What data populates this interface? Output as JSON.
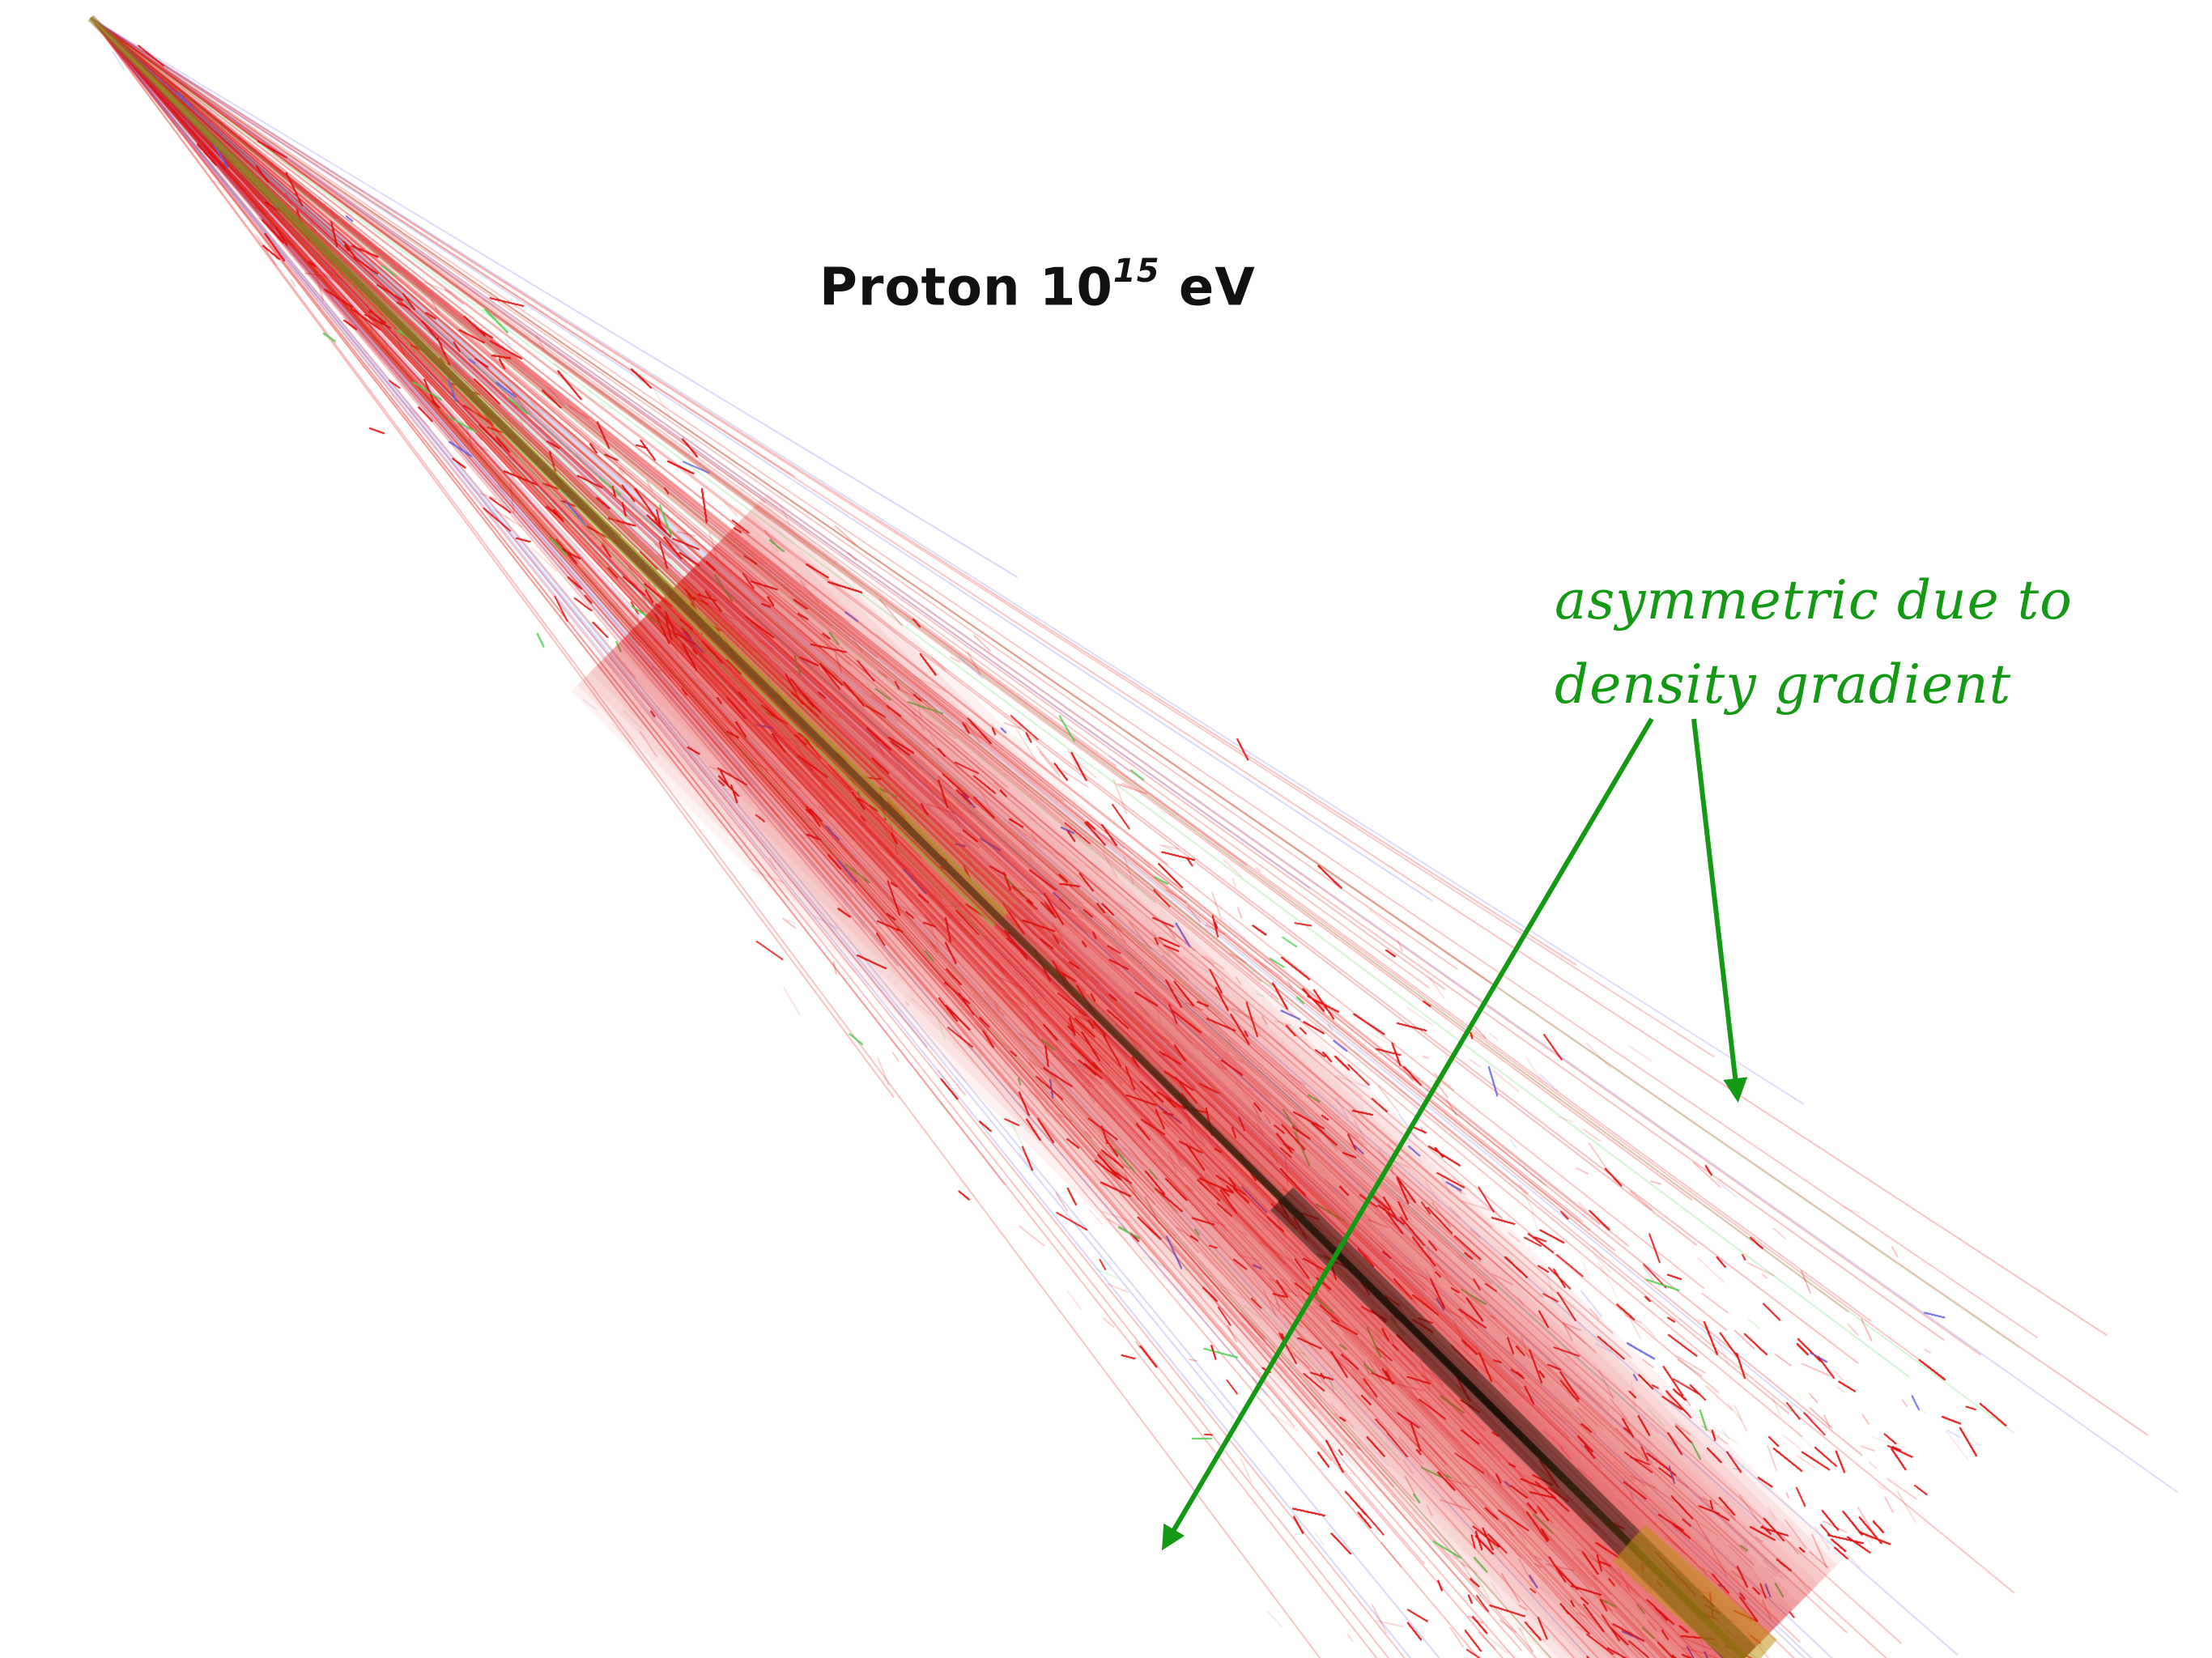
{
  "title": {
    "prefix": "Proton 10",
    "exponent": "15",
    "suffix": " eV"
  },
  "annotation": {
    "line1": "asymmetric due to",
    "line2": "density gradient",
    "color": "#139913"
  },
  "colors": {
    "background": "#ffffff",
    "electromagnetic_tracks": "#e41414",
    "muon_tracks": "#6a6ae6",
    "hadron_tracks": "#5ad25a",
    "shower_core": "#2a1a0a"
  }
}
